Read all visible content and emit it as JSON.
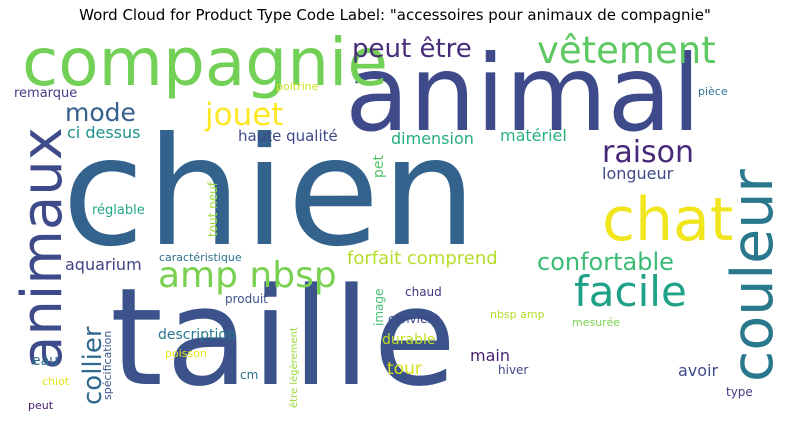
{
  "title": "Word Cloud for Product Type Code Label: \"accessoires pour animaux de compagnie\"",
  "words": [
    {
      "text": "chien",
      "color": "#33638d"
    },
    {
      "text": "taille",
      "color": "#3b528b"
    },
    {
      "text": "animal",
      "color": "#3e4a89"
    },
    {
      "text": "compagnie",
      "color": "#73d056"
    },
    {
      "text": "animaux",
      "color": "#3e4a89"
    },
    {
      "text": "couleur",
      "color": "#2a788e"
    },
    {
      "text": "chat",
      "color": "#f1e51d"
    },
    {
      "text": "vêtement",
      "color": "#5ec962"
    },
    {
      "text": "peut être",
      "color": "#472c7a"
    },
    {
      "text": "amp nbsp",
      "color": "#7ad151"
    },
    {
      "text": "facile",
      "color": "#1fa188"
    },
    {
      "text": "confortable",
      "color": "#3bbb75"
    },
    {
      "text": "jouet",
      "color": "#fde725"
    },
    {
      "text": "raison",
      "color": "#482878"
    },
    {
      "text": "mode",
      "color": "#355f8d"
    },
    {
      "text": "collier",
      "color": "#31688e"
    },
    {
      "text": "forfait comprend",
      "color": "#b5de2b"
    },
    {
      "text": "ci dessus",
      "color": "#21918c"
    },
    {
      "text": "haute qualité",
      "color": "#3e4989"
    },
    {
      "text": "dimension",
      "color": "#25ac82"
    },
    {
      "text": "matériel",
      "color": "#2ab07f"
    },
    {
      "text": "longueur",
      "color": "#3e4a89"
    },
    {
      "text": "aquarium",
      "color": "#414487"
    },
    {
      "text": "pet",
      "color": "#52c569"
    },
    {
      "text": "réglable",
      "color": "#22a785"
    },
    {
      "text": "tout neuf",
      "color": "#a0da39"
    },
    {
      "text": "caractéristique",
      "color": "#2c728e"
    },
    {
      "text": "poitrine",
      "color": "#d0e11c"
    },
    {
      "text": "remarque",
      "color": "#433e85"
    },
    {
      "text": "pièce",
      "color": "#2c728e"
    },
    {
      "text": "produit",
      "color": "#3b528b"
    },
    {
      "text": "image",
      "color": "#44bf70"
    },
    {
      "text": "chaud",
      "color": "#46337e"
    },
    {
      "text": "nbsp amp",
      "color": "#b5de2b"
    },
    {
      "text": "convient",
      "color": "#3f4788"
    },
    {
      "text": "mesurée",
      "color": "#7ad151"
    },
    {
      "text": "description",
      "color": "#2a788e"
    },
    {
      "text": "durable",
      "color": "#c2df23"
    },
    {
      "text": "eau",
      "color": "#2c728e"
    },
    {
      "text": "main",
      "color": "#481f70"
    },
    {
      "text": "spécification",
      "color": "#39568c"
    },
    {
      "text": "poisson",
      "color": "#e5e419"
    },
    {
      "text": "tour",
      "color": "#d8e219"
    },
    {
      "text": "avoir",
      "color": "#3e4a89"
    },
    {
      "text": "être légèrement",
      "color": "#9bd93c"
    },
    {
      "text": "cm",
      "color": "#2e6e8e"
    },
    {
      "text": "hiver",
      "color": "#3f4788"
    },
    {
      "text": "chiot",
      "color": "#e5e419"
    },
    {
      "text": "type",
      "color": "#443983"
    },
    {
      "text": "peut",
      "color": "#481a6c"
    }
  ]
}
